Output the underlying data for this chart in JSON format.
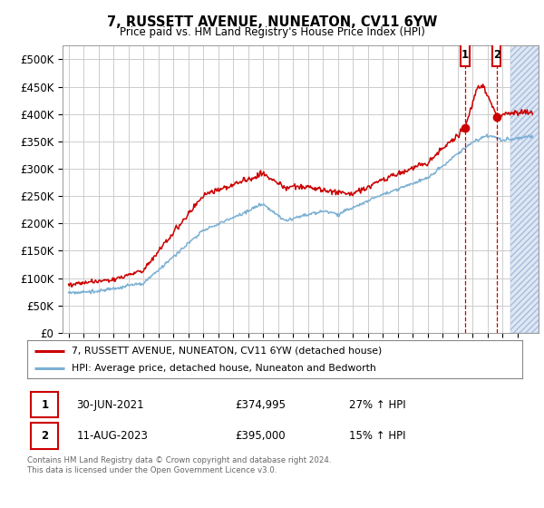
{
  "title": "7, RUSSETT AVENUE, NUNEATON, CV11 6YW",
  "subtitle": "Price paid vs. HM Land Registry's House Price Index (HPI)",
  "ylabel_ticks": [
    "£0",
    "£50K",
    "£100K",
    "£150K",
    "£200K",
    "£250K",
    "£300K",
    "£350K",
    "£400K",
    "£450K",
    "£500K"
  ],
  "ytick_values": [
    0,
    50000,
    100000,
    150000,
    200000,
    250000,
    300000,
    350000,
    400000,
    450000,
    500000
  ],
  "ylim": [
    0,
    525000
  ],
  "xlim_start": 1994.6,
  "xlim_end": 2026.4,
  "hatch_start": 2024.5,
  "sale1_year": 2021.5,
  "sale1_price": 374995,
  "sale1_date": "30-JUN-2021",
  "sale1_hpi": "27% ↑ HPI",
  "sale2_year": 2023.6,
  "sale2_price": 395000,
  "sale2_date": "11-AUG-2023",
  "sale2_hpi": "15% ↑ HPI",
  "legend_line1": "7, RUSSETT AVENUE, NUNEATON, CV11 6YW (detached house)",
  "legend_line2": "HPI: Average price, detached house, Nuneaton and Bedworth",
  "footer1": "Contains HM Land Registry data © Crown copyright and database right 2024.",
  "footer2": "This data is licensed under the Open Government Licence v3.0.",
  "red_color": "#cc0000",
  "blue_color": "#7ab0d4",
  "bg_color": "#ffffff",
  "grid_color": "#cccccc"
}
